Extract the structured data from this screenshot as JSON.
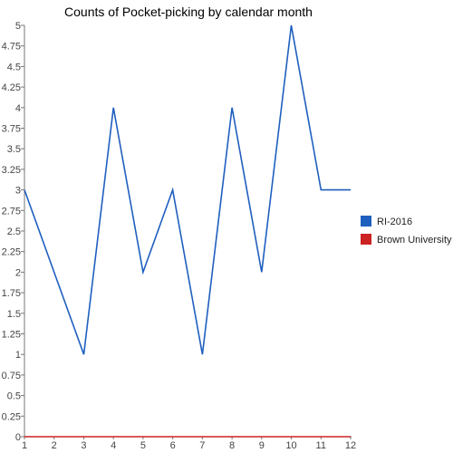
{
  "chart_data": {
    "type": "line",
    "title": "Counts of Pocket-picking by calendar month",
    "xlabel": "",
    "ylabel": "",
    "x": [
      1,
      2,
      3,
      4,
      5,
      6,
      7,
      8,
      9,
      10,
      11,
      12
    ],
    "xticks": [
      "1",
      "2",
      "3",
      "4",
      "5",
      "6",
      "7",
      "8",
      "9",
      "10",
      "11",
      "12"
    ],
    "ylim": [
      0,
      5
    ],
    "yticks": [
      "0",
      "0.25",
      "0.5",
      "0.75",
      "1",
      "1.25",
      "1.5",
      "1.75",
      "2",
      "2.25",
      "2.5",
      "2.75",
      "3",
      "3.25",
      "3.5",
      "3.75",
      "4",
      "4.25",
      "4.5",
      "4.75",
      "5"
    ],
    "grid": false,
    "legend_position": "right",
    "series": [
      {
        "name": "RI-2016",
        "color": "#1f5fbf",
        "values": [
          3,
          2,
          1,
          4,
          2,
          3,
          1,
          4,
          2,
          5,
          3,
          3
        ]
      },
      {
        "name": "Brown University",
        "color": "#cc2222",
        "values": [
          0,
          0,
          0,
          0,
          0,
          0,
          0,
          0,
          0,
          0,
          0,
          0
        ]
      }
    ]
  }
}
